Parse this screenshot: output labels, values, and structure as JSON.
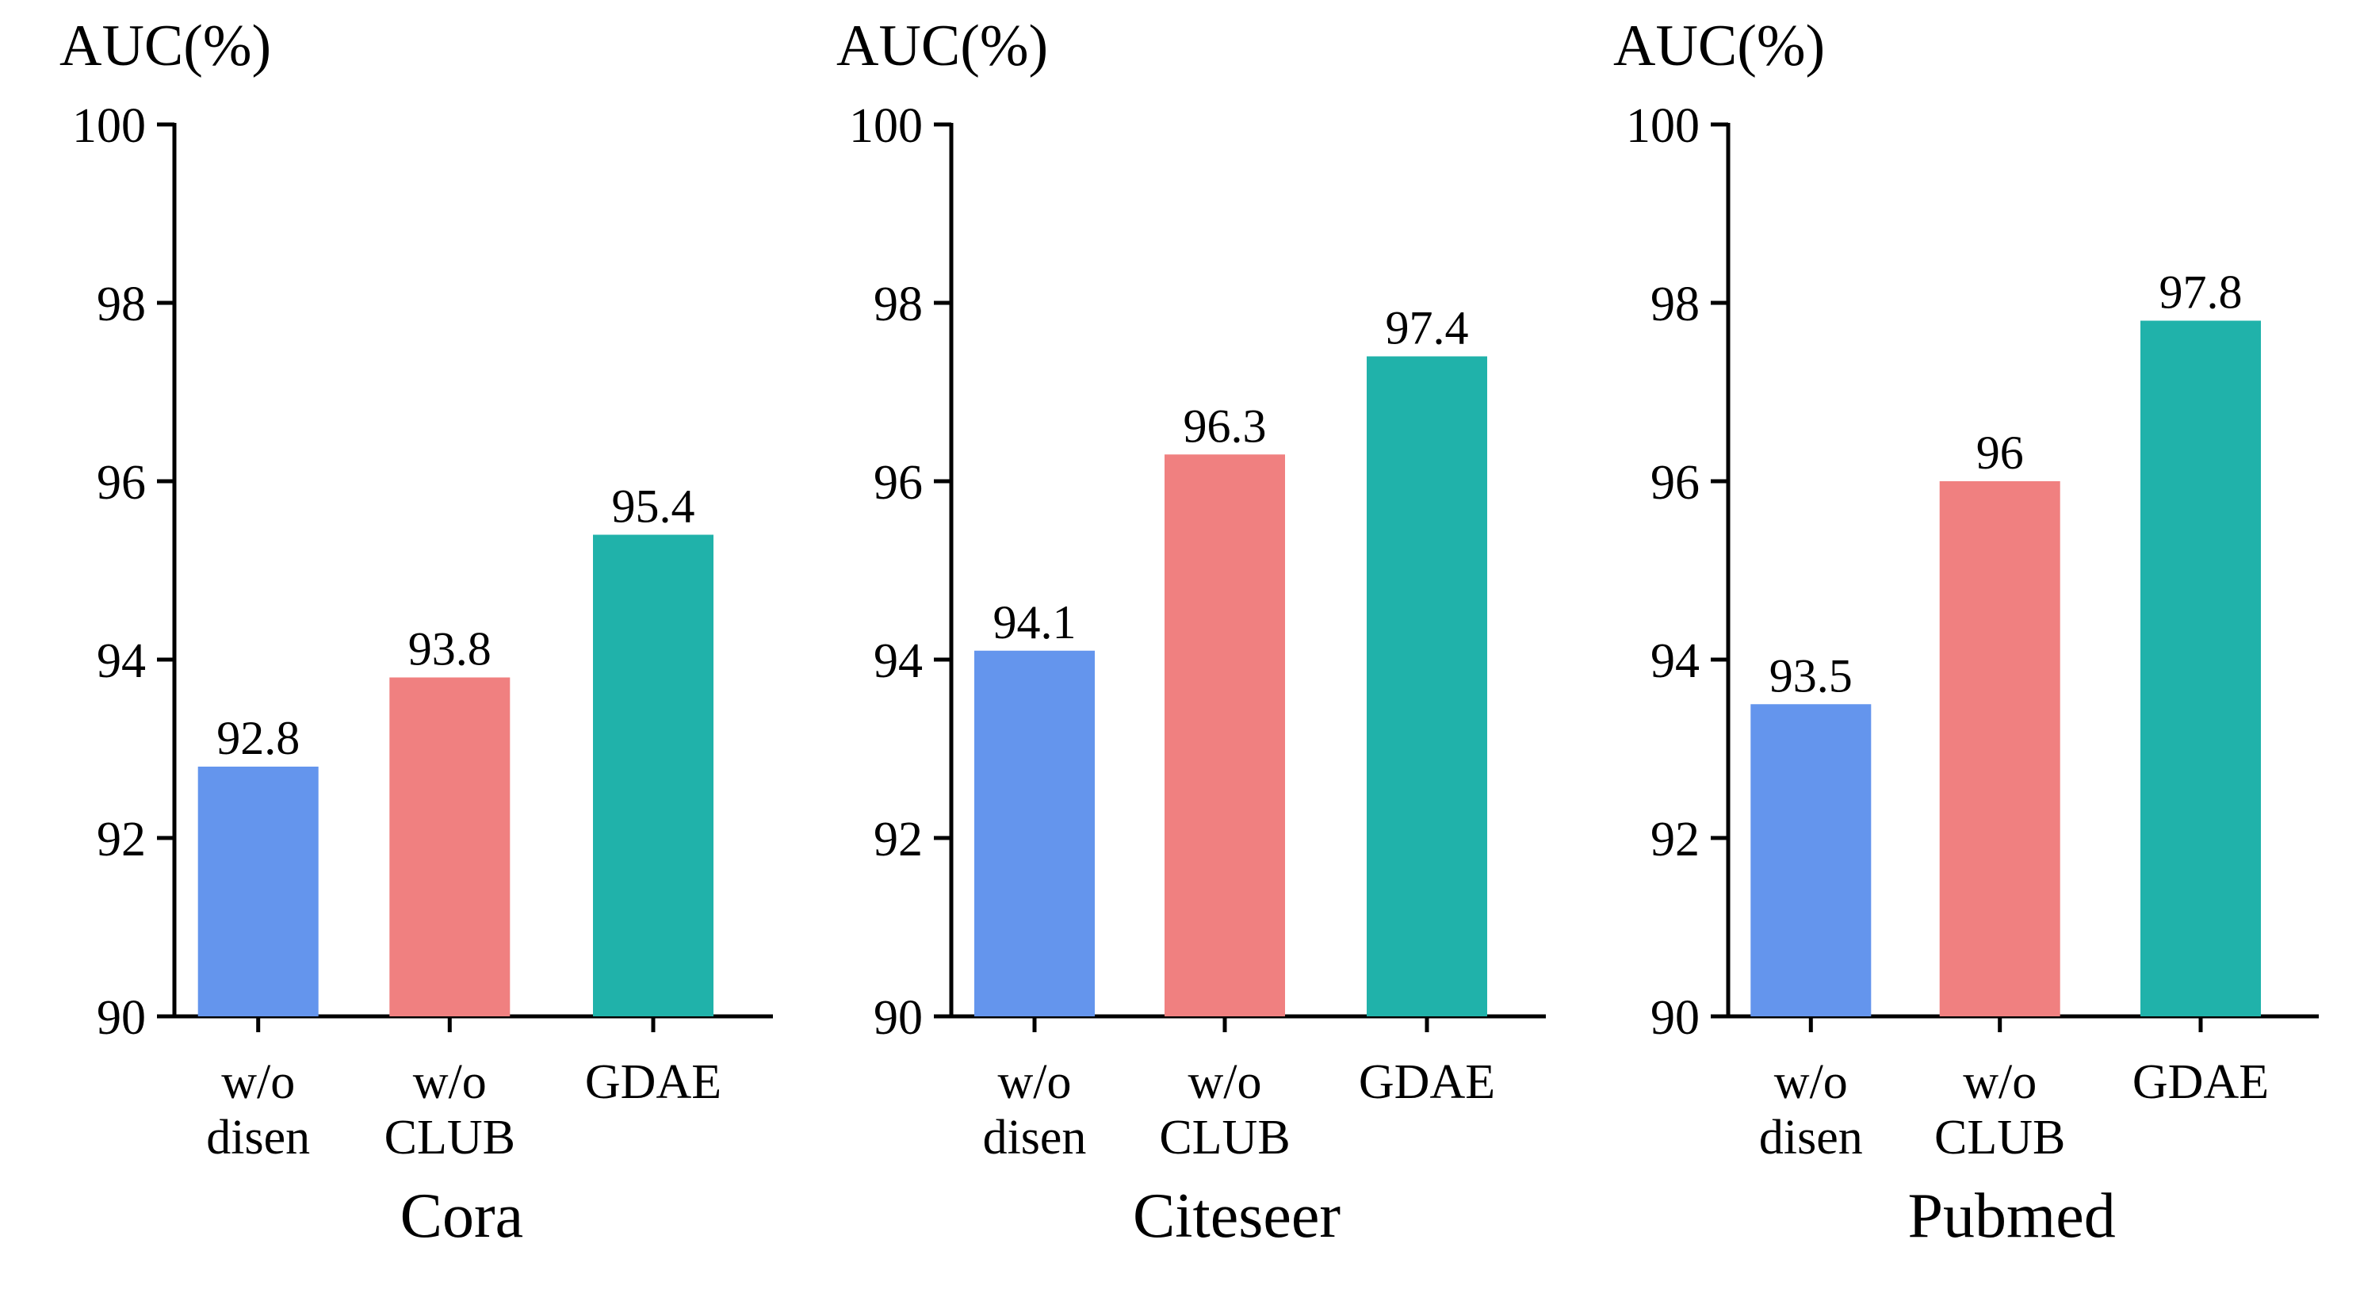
{
  "colors": {
    "w/o disen": "#6495ED",
    "w/o CLUB": "#F08080",
    "GDAE": "#20B2AA",
    "axis": "#000000"
  },
  "chart_data": [
    {
      "type": "bar",
      "ylabel": "AUC(%)",
      "xlabel": "Cora",
      "ylim": [
        90,
        100
      ],
      "yticks": [
        "90",
        "92",
        "94",
        "96",
        "98",
        "100"
      ],
      "categories": [
        [
          "w/o",
          "disen"
        ],
        [
          "w/o",
          "CLUB"
        ],
        [
          "GDAE"
        ]
      ],
      "values": [
        92.8,
        93.8,
        95.4
      ],
      "value_labels": [
        "92.8",
        "93.8",
        "95.4"
      ],
      "grid": false
    },
    {
      "type": "bar",
      "ylabel": "AUC(%)",
      "xlabel": "Citeseer",
      "ylim": [
        90,
        100
      ],
      "yticks": [
        "90",
        "92",
        "94",
        "96",
        "98",
        "100"
      ],
      "categories": [
        [
          "w/o",
          "disen"
        ],
        [
          "w/o",
          "CLUB"
        ],
        [
          "GDAE"
        ]
      ],
      "values": [
        94.1,
        96.3,
        97.4
      ],
      "value_labels": [
        "94.1",
        "96.3",
        "97.4"
      ],
      "grid": false
    },
    {
      "type": "bar",
      "ylabel": "AUC(%)",
      "xlabel": "Pubmed",
      "ylim": [
        90,
        100
      ],
      "yticks": [
        "90",
        "92",
        "94",
        "96",
        "98",
        "100"
      ],
      "categories": [
        [
          "w/o",
          "disen"
        ],
        [
          "w/o",
          "CLUB"
        ],
        [
          "GDAE"
        ]
      ],
      "values": [
        93.5,
        96,
        97.8
      ],
      "value_labels": [
        "93.5",
        "96",
        "97.8"
      ],
      "grid": false
    }
  ]
}
